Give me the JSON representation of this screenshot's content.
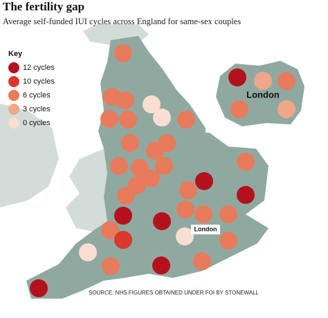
{
  "title": "The fertility gap",
  "subtitle": "Average self-funded IUI cycles across England for same-sex couples",
  "key": {
    "heading": "Key",
    "entries": [
      {
        "label": "12 cycles",
        "cycles": 12,
        "color": "#b3121d"
      },
      {
        "label": "10 cycles",
        "cycles": 10,
        "color": "#d8392b"
      },
      {
        "label": "6 cycles",
        "cycles": 6,
        "color": "#e77b5c"
      },
      {
        "label": "3 cycles",
        "cycles": 3,
        "color": "#f0a788"
      },
      {
        "label": "0 cycles",
        "cycles": 0,
        "color": "#f8dfd2"
      }
    ]
  },
  "inset_label": "London",
  "map_label": "London",
  "inset_markers": [
    12,
    3,
    6,
    6,
    3
  ],
  "markers": [
    6,
    6,
    6,
    0,
    0,
    6,
    6,
    6,
    6,
    6,
    6,
    6,
    6,
    6,
    6,
    6,
    6,
    12,
    6,
    12,
    6,
    6,
    6,
    6,
    12,
    12,
    6,
    10,
    0,
    6,
    0,
    6,
    12,
    6,
    12
  ],
  "source": "SOURCE: NHS FIGURES OBTAINED UNDER FOI BY STONEWALL"
}
